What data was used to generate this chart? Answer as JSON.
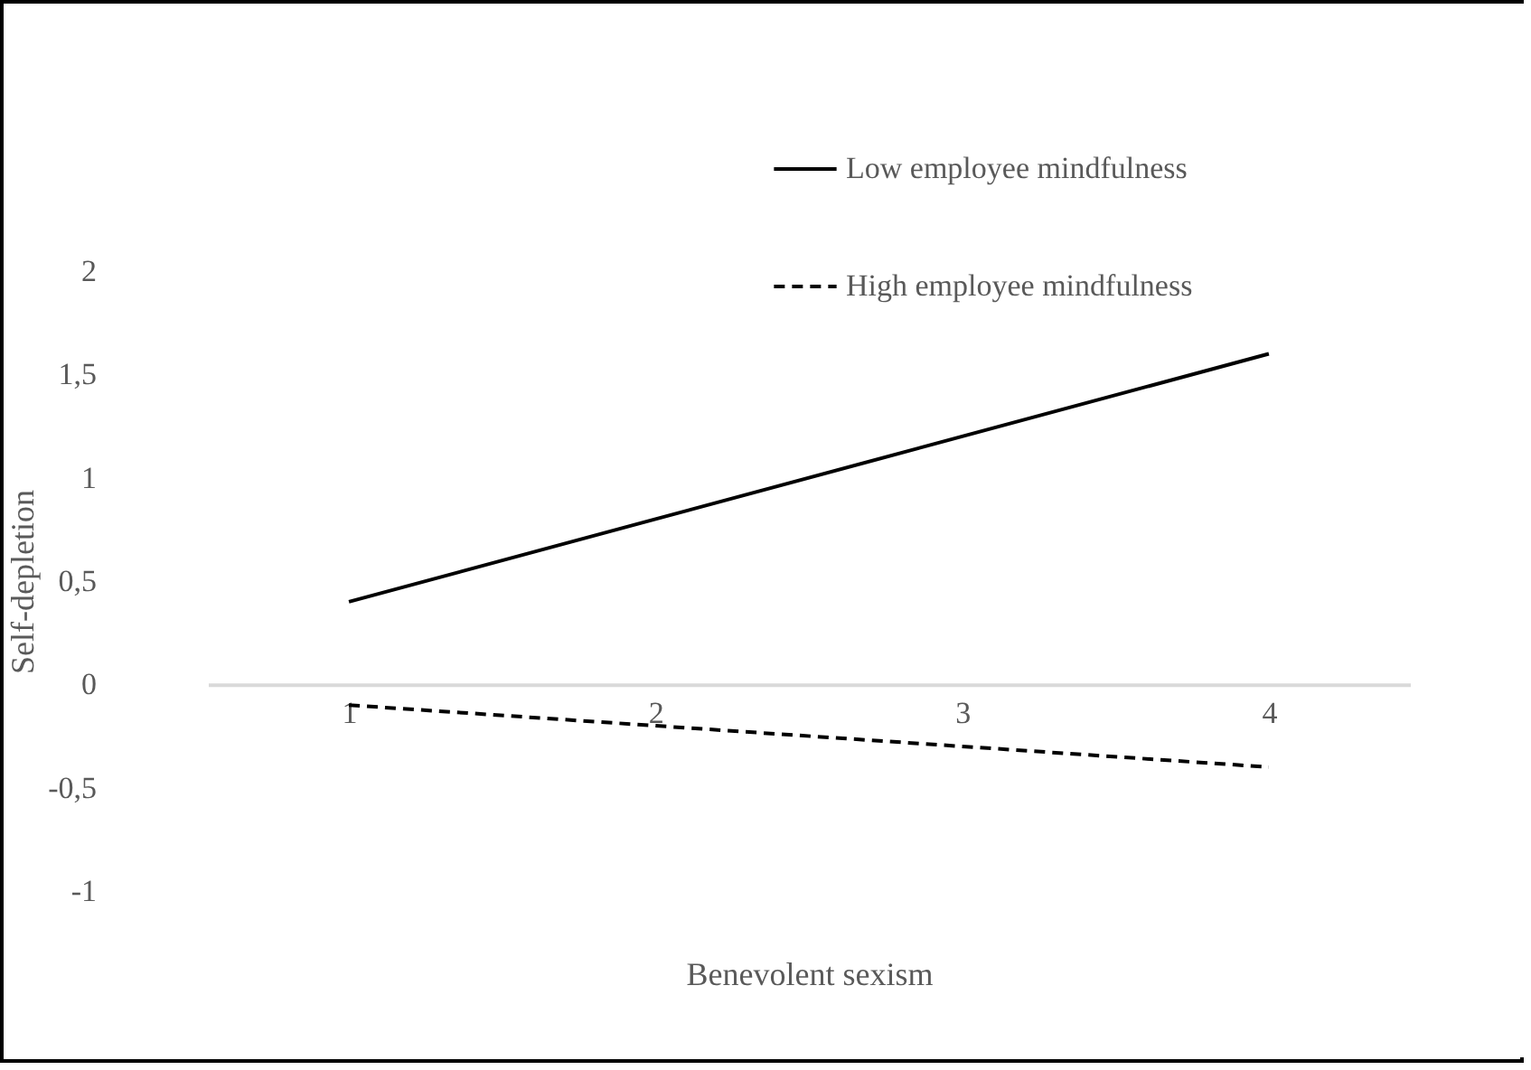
{
  "chart_data": {
    "type": "line",
    "xlabel": "Benevolent sexism",
    "ylabel": "Self-depletion",
    "categories": [
      "1",
      "2",
      "3",
      "4"
    ],
    "series": [
      {
        "name": "Low employee mindfulness",
        "color": "#000000",
        "line_style": "solid",
        "values": [
          0.4,
          0.8,
          1.2,
          1.6
        ]
      },
      {
        "name": "High employee mindfulness",
        "color": "#000000",
        "line_style": "dashed",
        "values": [
          -0.1,
          -0.2,
          -0.3,
          -0.4
        ]
      }
    ],
    "ylim": [
      -1,
      2
    ],
    "yticks": [
      -1,
      {
        "value": -0.5,
        "label": "-0,5"
      },
      0,
      {
        "value": 0.5,
        "label": "0,5"
      },
      1,
      {
        "value": 1.5,
        "label": "1,5"
      },
      2
    ],
    "grid": false,
    "legend": "top right",
    "marker": "none"
  }
}
